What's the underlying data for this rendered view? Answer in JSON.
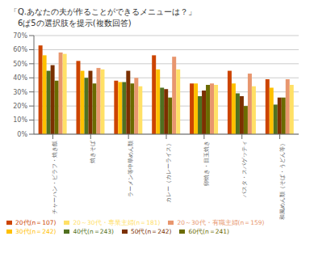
{
  "chart_data": {
    "type": "bar",
    "title": "「Q.あなたの夫が作ることができるメニューは？」",
    "subtitle": "　6ぱ5の選択肢を提示(複数回答)",
    "categories": [
      "チャーハン・ビラフ・焼き飯",
      "焼きそば",
      "ラーメン等中華めん類",
      "カレー（カレーライス）",
      "卵焼き・目玉焼き",
      "パスタ・スパゲッティ",
      "和風めん類（そば・うどん等）"
    ],
    "series": [
      {
        "name": "20代(n＝107)",
        "color": "#cc4400",
        "values": [
          63,
          52,
          38,
          56,
          36,
          45,
          39
        ]
      },
      {
        "name": "30代(n＝242)",
        "color": "#ffc000",
        "values": [
          56,
          45,
          37,
          46,
          36,
          36,
          33
        ]
      },
      {
        "name": "40代(n＝243)",
        "color": "#507020",
        "values": [
          45,
          40,
          37,
          33,
          27,
          29,
          21
        ]
      },
      {
        "name": "50代(n＝242)",
        "color": "#7b3000",
        "values": [
          49,
          45,
          45,
          32,
          31,
          27,
          26
        ]
      },
      {
        "name": "60代(n＝241)",
        "color": "#6b6b00",
        "values": [
          38,
          36,
          36,
          26,
          35,
          20,
          26
        ]
      },
      {
        "name": "20～30代・有職主婦(n＝159)",
        "color": "#e8966e",
        "values": [
          58,
          47,
          40,
          55,
          36,
          43,
          39
        ]
      },
      {
        "name": "20～30代・専業主婦(n＝181)",
        "color": "#ffe066",
        "values": [
          57,
          46,
          34,
          46,
          35,
          34,
          35
        ]
      }
    ],
    "ylim": [
      0,
      70
    ],
    "yticks": [
      {
        "value": 0,
        "label": "0%"
      },
      {
        "value": 10,
        "label": "10%"
      },
      {
        "value": 20,
        "label": "20%"
      },
      {
        "value": 30,
        "label": "30%"
      },
      {
        "value": 40,
        "label": "40%"
      },
      {
        "value": 50,
        "label": "50%"
      },
      {
        "value": 60,
        "label": "60%"
      },
      {
        "value": 70,
        "label": "70%"
      }
    ],
    "grid": true,
    "legend": "bottom"
  }
}
